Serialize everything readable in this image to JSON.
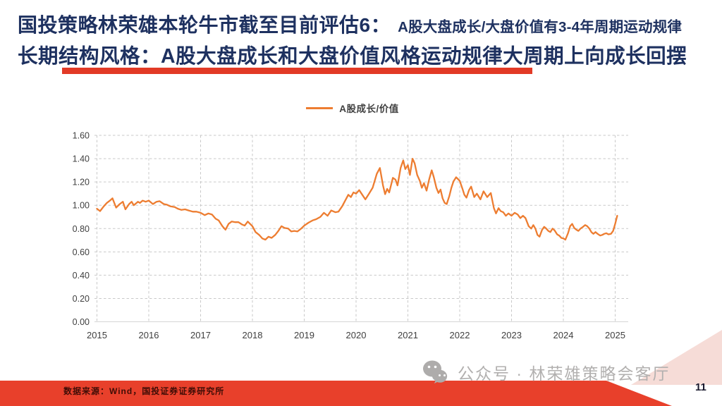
{
  "title": {
    "line1_main": "国投策略林荣雄本轮牛市截至目前评估6：",
    "line1_sub": "A股大盘成长/大盘价值有3-4年周期运动规律",
    "line2": "长期结构风格：A股大盘成长和大盘价值风格运动规律大周期上向成长回摆"
  },
  "legend": {
    "label": "A股成长/价值"
  },
  "footer": {
    "source": "数据来源：Wind，国投证券证券研究所",
    "watermark": "公众号 · 林荣雄策略会客厅",
    "page_number": "11"
  },
  "colors": {
    "line_orange": "#ED7D31",
    "title_navy": "#1e3160",
    "underline_red": "#e23a26",
    "footer_red": "#e8402b",
    "footer_pink": "#f6dcd7",
    "grid_gray": "#c9c9c9",
    "axis_line_gray": "#d5d5d5",
    "axis_text_gray": "#3f3f3f",
    "watermark_gray": "#b2b0af"
  },
  "chart_data": {
    "type": "line",
    "title": "",
    "xlabel": "",
    "ylabel": "",
    "grid": "dashed",
    "legend_position": "top-center",
    "xlim": [
      2015,
      2025.3
    ],
    "ylim": [
      0,
      1.6
    ],
    "x_ticks": [
      "2015",
      "2016",
      "2017",
      "2018",
      "2019",
      "2020",
      "2021",
      "2022",
      "2023",
      "2024",
      "2025"
    ],
    "y_ticks": [
      "0.00",
      "0.20",
      "0.40",
      "0.60",
      "0.80",
      "1.00",
      "1.20",
      "1.40",
      "1.60"
    ],
    "series": [
      {
        "name": "A股成长/价值",
        "color": "#ED7D31",
        "points": [
          [
            2015.0,
            0.97
          ],
          [
            2015.06,
            0.95
          ],
          [
            2015.13,
            0.99
          ],
          [
            2015.19,
            1.02
          ],
          [
            2015.25,
            1.04
          ],
          [
            2015.3,
            1.06
          ],
          [
            2015.37,
            0.98
          ],
          [
            2015.44,
            1.01
          ],
          [
            2015.5,
            1.03
          ],
          [
            2015.55,
            0.965
          ],
          [
            2015.62,
            1.01
          ],
          [
            2015.67,
            1.03
          ],
          [
            2015.71,
            1.0
          ],
          [
            2015.79,
            1.03
          ],
          [
            2015.83,
            1.02
          ],
          [
            2015.88,
            1.04
          ],
          [
            2015.94,
            1.03
          ],
          [
            2016.0,
            1.04
          ],
          [
            2016.08,
            1.01
          ],
          [
            2016.15,
            1.03
          ],
          [
            2016.21,
            1.035
          ],
          [
            2016.29,
            1.01
          ],
          [
            2016.35,
            1.005
          ],
          [
            2016.42,
            0.99
          ],
          [
            2016.5,
            0.985
          ],
          [
            2016.56,
            0.97
          ],
          [
            2016.63,
            0.96
          ],
          [
            2016.7,
            0.965
          ],
          [
            2016.77,
            0.955
          ],
          [
            2016.85,
            0.945
          ],
          [
            2016.92,
            0.945
          ],
          [
            2017.0,
            0.935
          ],
          [
            2017.08,
            0.915
          ],
          [
            2017.15,
            0.93
          ],
          [
            2017.22,
            0.92
          ],
          [
            2017.29,
            0.885
          ],
          [
            2017.35,
            0.87
          ],
          [
            2017.42,
            0.82
          ],
          [
            2017.48,
            0.79
          ],
          [
            2017.54,
            0.84
          ],
          [
            2017.6,
            0.86
          ],
          [
            2017.67,
            0.855
          ],
          [
            2017.73,
            0.855
          ],
          [
            2017.8,
            0.835
          ],
          [
            2017.85,
            0.825
          ],
          [
            2017.91,
            0.86
          ],
          [
            2018.0,
            0.82
          ],
          [
            2018.06,
            0.77
          ],
          [
            2018.13,
            0.745
          ],
          [
            2018.19,
            0.715
          ],
          [
            2018.25,
            0.705
          ],
          [
            2018.31,
            0.73
          ],
          [
            2018.37,
            0.72
          ],
          [
            2018.44,
            0.745
          ],
          [
            2018.5,
            0.78
          ],
          [
            2018.56,
            0.82
          ],
          [
            2018.62,
            0.805
          ],
          [
            2018.69,
            0.8
          ],
          [
            2018.75,
            0.775
          ],
          [
            2018.81,
            0.78
          ],
          [
            2018.87,
            0.775
          ],
          [
            2018.94,
            0.8
          ],
          [
            2019.0,
            0.825
          ],
          [
            2019.08,
            0.85
          ],
          [
            2019.16,
            0.87
          ],
          [
            2019.23,
            0.88
          ],
          [
            2019.31,
            0.9
          ],
          [
            2019.38,
            0.935
          ],
          [
            2019.45,
            0.91
          ],
          [
            2019.52,
            0.955
          ],
          [
            2019.6,
            0.94
          ],
          [
            2019.66,
            0.945
          ],
          [
            2019.73,
            0.99
          ],
          [
            2019.79,
            1.04
          ],
          [
            2019.85,
            1.09
          ],
          [
            2019.9,
            1.07
          ],
          [
            2019.95,
            1.11
          ],
          [
            2020.0,
            1.1
          ],
          [
            2020.06,
            1.13
          ],
          [
            2020.12,
            1.09
          ],
          [
            2020.18,
            1.05
          ],
          [
            2020.25,
            1.1
          ],
          [
            2020.32,
            1.15
          ],
          [
            2020.4,
            1.27
          ],
          [
            2020.46,
            1.32
          ],
          [
            2020.52,
            1.17
          ],
          [
            2020.56,
            1.095
          ],
          [
            2020.6,
            1.14
          ],
          [
            2020.64,
            1.11
          ],
          [
            2020.71,
            1.235
          ],
          [
            2020.76,
            1.22
          ],
          [
            2020.8,
            1.17
          ],
          [
            2020.86,
            1.32
          ],
          [
            2020.91,
            1.385
          ],
          [
            2020.95,
            1.31
          ],
          [
            2021.0,
            1.345
          ],
          [
            2021.04,
            1.26
          ],
          [
            2021.09,
            1.4
          ],
          [
            2021.13,
            1.36
          ],
          [
            2021.18,
            1.26
          ],
          [
            2021.23,
            1.21
          ],
          [
            2021.27,
            1.15
          ],
          [
            2021.31,
            1.19
          ],
          [
            2021.36,
            1.125
          ],
          [
            2021.41,
            1.22
          ],
          [
            2021.46,
            1.3
          ],
          [
            2021.5,
            1.24
          ],
          [
            2021.55,
            1.15
          ],
          [
            2021.59,
            1.105
          ],
          [
            2021.63,
            1.135
          ],
          [
            2021.67,
            1.06
          ],
          [
            2021.71,
            1.02
          ],
          [
            2021.75,
            1.01
          ],
          [
            2021.8,
            1.08
          ],
          [
            2021.84,
            1.15
          ],
          [
            2021.88,
            1.205
          ],
          [
            2021.93,
            1.24
          ],
          [
            2022.0,
            1.21
          ],
          [
            2022.05,
            1.145
          ],
          [
            2022.09,
            1.09
          ],
          [
            2022.13,
            1.065
          ],
          [
            2022.18,
            1.13
          ],
          [
            2022.22,
            1.16
          ],
          [
            2022.28,
            1.07
          ],
          [
            2022.33,
            1.1
          ],
          [
            2022.4,
            1.05
          ],
          [
            2022.46,
            1.12
          ],
          [
            2022.53,
            1.07
          ],
          [
            2022.6,
            1.105
          ],
          [
            2022.66,
            0.975
          ],
          [
            2022.7,
            0.93
          ],
          [
            2022.75,
            0.975
          ],
          [
            2022.79,
            0.95
          ],
          [
            2022.84,
            0.94
          ],
          [
            2022.89,
            0.91
          ],
          [
            2022.94,
            0.93
          ],
          [
            2023.0,
            0.91
          ],
          [
            2023.06,
            0.935
          ],
          [
            2023.12,
            0.92
          ],
          [
            2023.17,
            0.89
          ],
          [
            2023.22,
            0.91
          ],
          [
            2023.27,
            0.89
          ],
          [
            2023.33,
            0.82
          ],
          [
            2023.38,
            0.8
          ],
          [
            2023.42,
            0.83
          ],
          [
            2023.46,
            0.8
          ],
          [
            2023.5,
            0.745
          ],
          [
            2023.54,
            0.73
          ],
          [
            2023.59,
            0.79
          ],
          [
            2023.63,
            0.815
          ],
          [
            2023.67,
            0.8
          ],
          [
            2023.71,
            0.78
          ],
          [
            2023.75,
            0.77
          ],
          [
            2023.79,
            0.8
          ],
          [
            2023.83,
            0.785
          ],
          [
            2023.88,
            0.75
          ],
          [
            2023.92,
            0.74
          ],
          [
            2023.96,
            0.72
          ],
          [
            2024.0,
            0.715
          ],
          [
            2024.04,
            0.705
          ],
          [
            2024.09,
            0.76
          ],
          [
            2024.13,
            0.82
          ],
          [
            2024.17,
            0.84
          ],
          [
            2024.21,
            0.805
          ],
          [
            2024.25,
            0.79
          ],
          [
            2024.29,
            0.78
          ],
          [
            2024.33,
            0.8
          ],
          [
            2024.38,
            0.815
          ],
          [
            2024.42,
            0.83
          ],
          [
            2024.46,
            0.82
          ],
          [
            2024.5,
            0.8
          ],
          [
            2024.54,
            0.77
          ],
          [
            2024.58,
            0.755
          ],
          [
            2024.62,
            0.77
          ],
          [
            2024.66,
            0.755
          ],
          [
            2024.71,
            0.74
          ],
          [
            2024.75,
            0.745
          ],
          [
            2024.79,
            0.755
          ],
          [
            2024.83,
            0.76
          ],
          [
            2024.87,
            0.75
          ],
          [
            2024.92,
            0.755
          ],
          [
            2024.96,
            0.78
          ],
          [
            2025.0,
            0.84
          ],
          [
            2025.04,
            0.91
          ]
        ]
      }
    ]
  }
}
